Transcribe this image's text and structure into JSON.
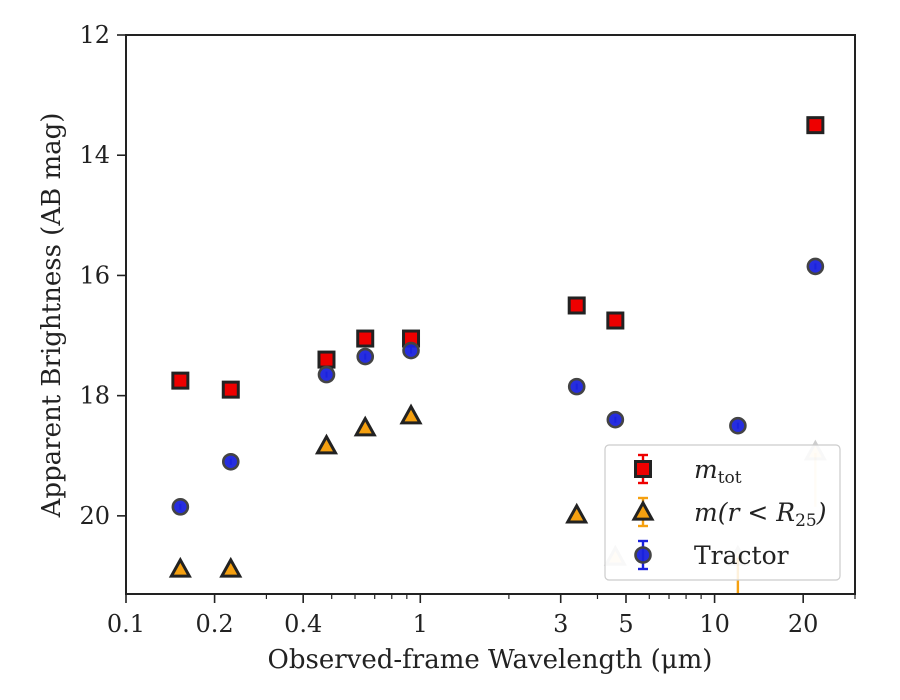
{
  "chart_data": {
    "type": "scatter",
    "xlabel": "Observed-frame Wavelength (μm)",
    "ylabel": "Apparent Brightness (AB mag)",
    "xscale": "log",
    "xlim": [
      0.1,
      30
    ],
    "ylim": [
      21.3,
      12
    ],
    "y_inverted": true,
    "x_ticks": [
      {
        "value": 0.1,
        "label": "0.1"
      },
      {
        "value": 0.2,
        "label": "0.2"
      },
      {
        "value": 0.4,
        "label": "0.4"
      },
      {
        "value": 1,
        "label": "1"
      },
      {
        "value": 3,
        "label": "3"
      },
      {
        "value": 5,
        "label": "5"
      },
      {
        "value": 10,
        "label": "10"
      },
      {
        "value": 20,
        "label": "20"
      }
    ],
    "y_ticks": [
      {
        "value": 12,
        "label": "12"
      },
      {
        "value": 14,
        "label": "14"
      },
      {
        "value": 16,
        "label": "16"
      },
      {
        "value": 18,
        "label": "18"
      },
      {
        "value": 20,
        "label": "20"
      }
    ],
    "grid": false,
    "legend_position": "lower-right",
    "series": [
      {
        "name": "m_tot",
        "legend_label": "m",
        "legend_sub": "tot",
        "marker": "square",
        "color": "#ee0000",
        "edge_color": "#222222",
        "x": [
          0.153,
          0.227,
          0.48,
          0.65,
          0.93,
          3.4,
          4.6,
          22
        ],
        "y": [
          17.75,
          17.9,
          17.4,
          17.05,
          17.05,
          16.5,
          16.75,
          13.5
        ]
      },
      {
        "name": "m(r < R25)",
        "legend_label": "m(r < R",
        "legend_sub": "25",
        "legend_tail": ")",
        "marker": "triangle",
        "color": "#f5a010",
        "edge_color": "#222222",
        "x": [
          0.153,
          0.227,
          0.48,
          0.65,
          0.93,
          3.4,
          4.6,
          12,
          22
        ],
        "y": [
          20.9,
          20.9,
          18.85,
          18.55,
          18.35,
          20.0,
          20.7,
          20.7,
          18.95
        ],
        "faded": [
          false,
          false,
          false,
          false,
          false,
          false,
          true,
          true,
          true
        ],
        "arrows": [
          {
            "x": 12,
            "from": 20.7,
            "to": 21.3
          },
          {
            "x": 22,
            "from": 18.95,
            "to": 19.85
          }
        ]
      },
      {
        "name": "Tractor",
        "legend_label": "Tractor",
        "marker": "circle",
        "color": "#1a22dd",
        "edge_color": "#444444",
        "x": [
          0.153,
          0.227,
          0.48,
          0.65,
          0.93,
          3.4,
          4.6,
          12,
          22
        ],
        "y": [
          19.85,
          19.1,
          17.65,
          17.35,
          17.25,
          17.85,
          18.4,
          18.5,
          15.85
        ]
      }
    ]
  }
}
